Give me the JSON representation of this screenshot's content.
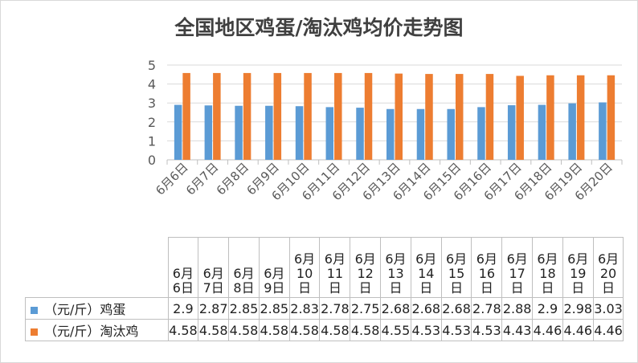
{
  "chart_data": {
    "type": "bar",
    "title": "全国地区鸡蛋/淘汰鸡均价走势图",
    "categories": [
      "6月6日",
      "6月7日",
      "6月8日",
      "6月9日",
      "6月10日",
      "6月11日",
      "6月12日",
      "6月13日",
      "6月14日",
      "6月15日",
      "6月16日",
      "6月17日",
      "6月18日",
      "6月19日",
      "6月20日"
    ],
    "series": [
      {
        "name": "（元/斤）鸡蛋",
        "color": "#5b9bd5",
        "values": [
          2.9,
          2.87,
          2.85,
          2.85,
          2.83,
          2.78,
          2.75,
          2.68,
          2.68,
          2.68,
          2.78,
          2.88,
          2.9,
          2.98,
          3.03
        ]
      },
      {
        "name": "（元/斤）淘汰鸡",
        "color": "#ed7d31",
        "values": [
          4.58,
          4.58,
          4.58,
          4.58,
          4.58,
          4.58,
          4.58,
          4.55,
          4.53,
          4.53,
          4.53,
          4.43,
          4.46,
          4.46,
          4.46
        ]
      }
    ],
    "ylim": [
      0,
      5
    ],
    "yticks": [
      0,
      1,
      2,
      3,
      4,
      5
    ],
    "grid": true,
    "legend": "data-table"
  }
}
